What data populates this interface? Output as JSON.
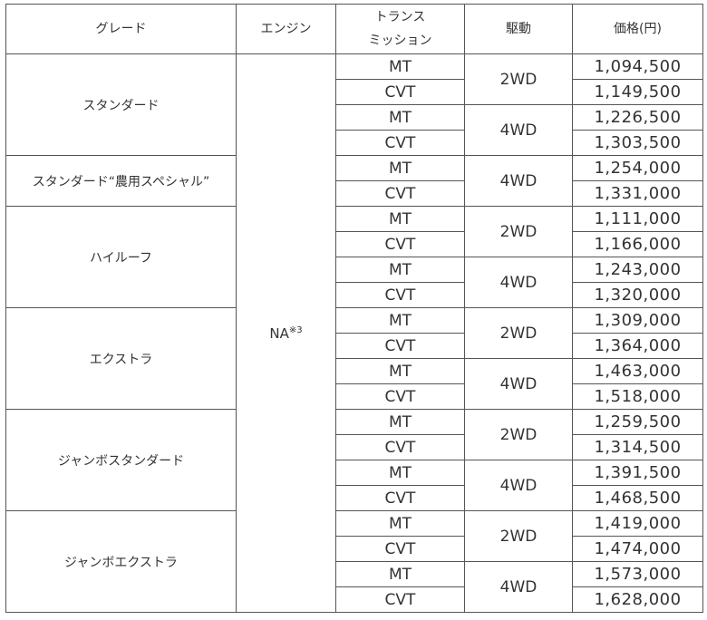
{
  "headers": {
    "grade": "グレード",
    "engine": "エンジン",
    "transmission_line1": "トランス",
    "transmission_line2": "ミッション",
    "drive": "駆動",
    "price": "価格(円)"
  },
  "engine": {
    "value": "NA",
    "note": "※3"
  },
  "grades": [
    {
      "name": "スタンダード",
      "drives": [
        {
          "drive": "2WD",
          "rows": [
            {
              "trans": "MT",
              "price": "1,094,500"
            },
            {
              "trans": "CVT",
              "price": "1,149,500"
            }
          ]
        },
        {
          "drive": "4WD",
          "rows": [
            {
              "trans": "MT",
              "price": "1,226,500"
            },
            {
              "trans": "CVT",
              "price": "1,303,500"
            }
          ]
        }
      ]
    },
    {
      "name": "スタンダード“農用スペシャル”",
      "drives": [
        {
          "drive": "4WD",
          "rows": [
            {
              "trans": "MT",
              "price": "1,254,000"
            },
            {
              "trans": "CVT",
              "price": "1,331,000"
            }
          ]
        }
      ]
    },
    {
      "name": "ハイルーフ",
      "drives": [
        {
          "drive": "2WD",
          "rows": [
            {
              "trans": "MT",
              "price": "1,111,000"
            },
            {
              "trans": "CVT",
              "price": "1,166,000"
            }
          ]
        },
        {
          "drive": "4WD",
          "rows": [
            {
              "trans": "MT",
              "price": "1,243,000"
            },
            {
              "trans": "CVT",
              "price": "1,320,000"
            }
          ]
        }
      ]
    },
    {
      "name": "エクストラ",
      "drives": [
        {
          "drive": "2WD",
          "rows": [
            {
              "trans": "MT",
              "price": "1,309,000"
            },
            {
              "trans": "CVT",
              "price": "1,364,000"
            }
          ]
        },
        {
          "drive": "4WD",
          "rows": [
            {
              "trans": "MT",
              "price": "1,463,000"
            },
            {
              "trans": "CVT",
              "price": "1,518,000"
            }
          ]
        }
      ]
    },
    {
      "name": "ジャンボスタンダード",
      "drives": [
        {
          "drive": "2WD",
          "rows": [
            {
              "trans": "MT",
              "price": "1,259,500"
            },
            {
              "trans": "CVT",
              "price": "1,314,500"
            }
          ]
        },
        {
          "drive": "4WD",
          "rows": [
            {
              "trans": "MT",
              "price": "1,391,500"
            },
            {
              "trans": "CVT",
              "price": "1,468,500"
            }
          ]
        }
      ]
    },
    {
      "name": "ジャンボエクストラ",
      "drives": [
        {
          "drive": "2WD",
          "rows": [
            {
              "trans": "MT",
              "price": "1,419,000"
            },
            {
              "trans": "CVT",
              "price": "1,474,000"
            }
          ]
        },
        {
          "drive": "4WD",
          "rows": [
            {
              "trans": "MT",
              "price": "1,573,000"
            },
            {
              "trans": "CVT",
              "price": "1,628,000"
            }
          ]
        }
      ]
    }
  ]
}
